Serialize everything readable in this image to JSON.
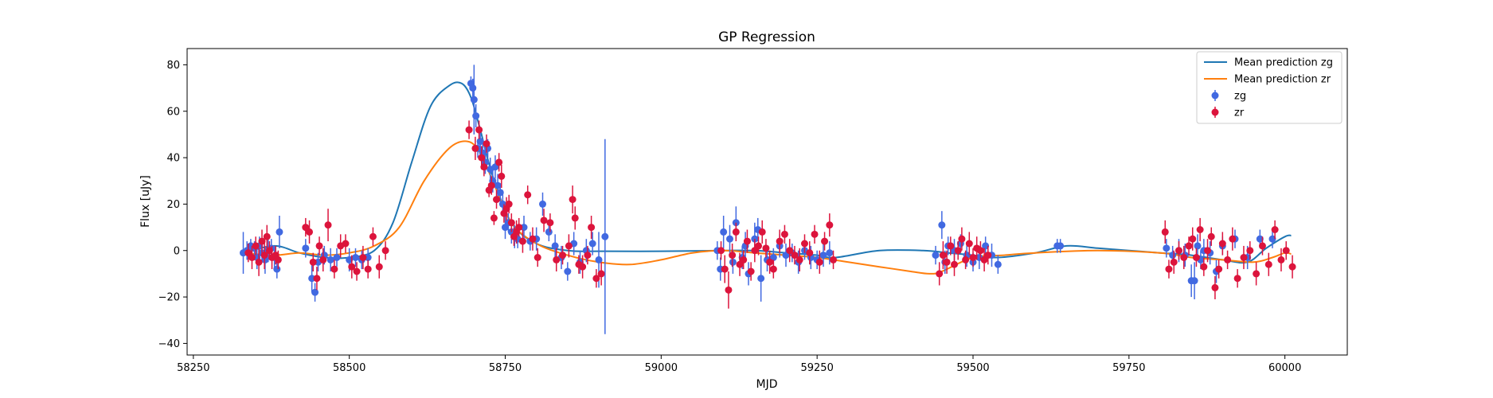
{
  "chart_data": {
    "type": "scatter",
    "title": "GP Regression",
    "xlabel": "MJD",
    "ylabel": "Flux [uJy]",
    "xlim": [
      58240,
      60100
    ],
    "ylim": [
      -45,
      87
    ],
    "xticks": [
      58250,
      58500,
      58750,
      59000,
      59250,
      59500,
      59750,
      60000
    ],
    "yticks": [
      -40,
      -20,
      0,
      20,
      40,
      60,
      80
    ],
    "grid": false,
    "legend_position": "top-right",
    "lines": [
      {
        "name": "Mean prediction zg",
        "color": "#1f77b4",
        "x": [
          58330,
          58380,
          58420,
          58460,
          58500,
          58540,
          58570,
          58600,
          58630,
          58660,
          58680,
          58695,
          58710,
          58730,
          58760,
          58800,
          58850,
          58900,
          59000,
          59100,
          59150,
          59200,
          59250,
          59280,
          59350,
          59420,
          59460,
          59500,
          59540,
          59600,
          59650,
          59700,
          59750,
          59800,
          59850,
          59900,
          59940,
          59970,
          60000,
          60010
        ],
        "y": [
          -1,
          2,
          -1,
          -3,
          -3,
          0,
          12,
          38,
          62,
          71,
          72,
          66,
          52,
          32,
          12,
          3,
          0,
          -0.3,
          -0.3,
          0,
          0,
          -1,
          -2,
          -3,
          0,
          0,
          -1,
          -2,
          -3,
          -1,
          2,
          1,
          0,
          -1,
          -2,
          -4,
          -5,
          1,
          6,
          6.5
        ]
      },
      {
        "name": "Mean prediction zr",
        "color": "#ff7f0e",
        "x": [
          58330,
          58380,
          58420,
          58460,
          58500,
          58540,
          58580,
          58620,
          58660,
          58690,
          58710,
          58730,
          58760,
          58800,
          58850,
          58900,
          58950,
          59000,
          59050,
          59100,
          59150,
          59200,
          59250,
          59300,
          59350,
          59400,
          59430,
          59450,
          59500,
          59550,
          59600,
          59700,
          59800,
          59850,
          59900,
          59950,
          59980,
          60000,
          60010
        ],
        "y": [
          -1,
          -2,
          -1,
          -2,
          -1,
          2,
          10,
          30,
          44,
          47,
          42,
          30,
          12,
          3,
          -2,
          -5,
          -6,
          -4,
          -1,
          0,
          -1,
          -2,
          -3,
          -5,
          -7,
          -9,
          -10,
          -9,
          -3,
          -2,
          -1,
          0,
          -1,
          -3,
          -4,
          -5,
          -3,
          -1,
          -1.5
        ]
      }
    ],
    "series": [
      {
        "name": "zg",
        "color": "#4169e1",
        "x": [
          58330,
          58336,
          58342,
          58348,
          58352,
          58356,
          58360,
          58365,
          58370,
          58375,
          58380,
          58384,
          58388,
          58430,
          58440,
          58445,
          58450,
          58460,
          58470,
          58480,
          58500,
          58510,
          58520,
          58530,
          58695,
          58698,
          58700,
          58703,
          58706,
          58710,
          58714,
          58718,
          58722,
          58726,
          58730,
          58734,
          58738,
          58742,
          58746,
          58750,
          58755,
          58760,
          58765,
          58770,
          58780,
          58790,
          58800,
          58810,
          58820,
          58830,
          58840,
          58850,
          58860,
          58870,
          58880,
          58890,
          58900,
          58910,
          59090,
          59095,
          59100,
          59110,
          59115,
          59120,
          59130,
          59135,
          59140,
          59150,
          59155,
          59160,
          59170,
          59180,
          59190,
          59200,
          59210,
          59220,
          59230,
          59240,
          59250,
          59260,
          59270,
          59440,
          59450,
          59455,
          59460,
          59470,
          59480,
          59490,
          59500,
          59510,
          59520,
          59530,
          59540,
          59635,
          59640,
          59810,
          59820,
          59830,
          59840,
          59850,
          59855,
          59860,
          59865,
          59870,
          59880,
          59890,
          59900,
          59920,
          59940,
          59960,
          59980
        ],
        "y": [
          -1,
          0,
          2,
          1,
          -3,
          2,
          -1,
          -4,
          0,
          1,
          -3,
          -8,
          8,
          1,
          -12,
          -18,
          -5,
          -2,
          -4,
          -3,
          -4,
          -3,
          -4,
          -3,
          72,
          70,
          65,
          58,
          44,
          47,
          42,
          38,
          44,
          35,
          30,
          36,
          28,
          25,
          20,
          10,
          12,
          8,
          6,
          5,
          10,
          4,
          5,
          20,
          8,
          2,
          -3,
          -9,
          3,
          -5,
          0,
          3,
          -4,
          6,
          0,
          -8,
          8,
          5,
          -5,
          12,
          -3,
          2,
          -10,
          5,
          9,
          -12,
          -4,
          -3,
          2,
          -2,
          -1,
          -5,
          0,
          -3,
          -4,
          -2,
          -1,
          -2,
          11,
          -5,
          2,
          0,
          3,
          -2,
          -5,
          -3,
          2,
          -2,
          -6,
          2,
          2,
          1,
          -2,
          0,
          -2,
          -13,
          -13,
          2,
          -4,
          0,
          -1,
          -9,
          2,
          5,
          -3,
          5,
          5
        ],
        "yerr": [
          9,
          4,
          3,
          3,
          5,
          4,
          4,
          6,
          5,
          4,
          5,
          4,
          7,
          4,
          6,
          4,
          4,
          4,
          5,
          4,
          5,
          4,
          4,
          4,
          3,
          4,
          15,
          5,
          4,
          5,
          4,
          5,
          4,
          5,
          5,
          5,
          5,
          4,
          5,
          5,
          4,
          5,
          5,
          4,
          5,
          4,
          5,
          5,
          4,
          5,
          5,
          4,
          5,
          5,
          5,
          5,
          12,
          42,
          4,
          5,
          7,
          6,
          5,
          7,
          5,
          6,
          5,
          7,
          5,
          10,
          5,
          4,
          5,
          5,
          4,
          5,
          4,
          5,
          4,
          5,
          5,
          4,
          6,
          5,
          4,
          5,
          4,
          5,
          4,
          5,
          4,
          5,
          4,
          3,
          3,
          4,
          4,
          5,
          5,
          7,
          8,
          5,
          4,
          5,
          5,
          5,
          4,
          4,
          5,
          4,
          4
        ]
      },
      {
        "name": "zr",
        "color": "#dc143c",
        "x": [
          58338,
          58344,
          58350,
          58355,
          58360,
          58364,
          58368,
          58372,
          58376,
          58382,
          58386,
          58430,
          58436,
          58442,
          58448,
          58452,
          58458,
          58466,
          58476,
          58486,
          58494,
          58504,
          58512,
          58522,
          58530,
          58538,
          58548,
          58558,
          58692,
          58702,
          58708,
          58712,
          58716,
          58720,
          58724,
          58728,
          58732,
          58736,
          58740,
          58744,
          58748,
          58752,
          58756,
          58760,
          58764,
          58768,
          58772,
          58778,
          58786,
          58794,
          58802,
          58812,
          58822,
          58832,
          58842,
          58852,
          58858,
          58862,
          58868,
          58874,
          58882,
          58888,
          58896,
          58904,
          59096,
          59102,
          59108,
          59114,
          59120,
          59126,
          59132,
          59138,
          59144,
          59150,
          59156,
          59162,
          59168,
          59174,
          59180,
          59190,
          59198,
          59206,
          59214,
          59222,
          59230,
          59238,
          59246,
          59254,
          59262,
          59270,
          59276,
          59446,
          59452,
          59458,
          59464,
          59470,
          59476,
          59482,
          59488,
          59494,
          59500,
          59506,
          59512,
          59518,
          59524,
          59808,
          59814,
          59822,
          59830,
          59838,
          59846,
          59852,
          59858,
          59864,
          59870,
          59876,
          59882,
          59888,
          59894,
          59900,
          59908,
          59916,
          59924,
          59934,
          59944,
          59954,
          59964,
          59974,
          59984,
          59994,
          60002,
          60012
        ],
        "y": [
          -1,
          -3,
          2,
          -5,
          4,
          -2,
          6,
          0,
          -3,
          -2,
          -4,
          10,
          8,
          -5,
          -12,
          2,
          -4,
          11,
          -8,
          2,
          3,
          -7,
          -9,
          -3,
          -8,
          6,
          -7,
          0,
          52,
          44,
          52,
          40,
          36,
          46,
          26,
          28,
          14,
          22,
          38,
          32,
          16,
          18,
          20,
          12,
          6,
          8,
          10,
          4,
          24,
          5,
          -3,
          13,
          12,
          -4,
          -2,
          2,
          22,
          14,
          -6,
          -7,
          -2,
          10,
          -12,
          -10,
          0,
          -8,
          -17,
          -2,
          8,
          -6,
          -4,
          4,
          -9,
          0,
          2,
          8,
          1,
          -5,
          -8,
          4,
          7,
          0,
          -2,
          -4,
          3,
          -1,
          7,
          -5,
          4,
          11,
          -4,
          -10,
          -2,
          -5,
          2,
          -6,
          0,
          5,
          -4,
          3,
          -3,
          1,
          0,
          -4,
          -2,
          8,
          -8,
          -5,
          0,
          -3,
          2,
          5,
          -3,
          9,
          -7,
          0,
          6,
          -16,
          -8,
          3,
          -4,
          5,
          -12,
          -3,
          0,
          -10,
          2,
          -6,
          9,
          -4,
          0,
          -7
        ],
        "yerr": [
          4,
          5,
          4,
          6,
          5,
          6,
          5,
          4,
          5,
          4,
          4,
          4,
          5,
          4,
          5,
          4,
          5,
          7,
          4,
          5,
          4,
          5,
          4,
          5,
          4,
          4,
          5,
          4,
          4,
          5,
          4,
          5,
          4,
          4,
          3,
          4,
          3,
          4,
          4,
          5,
          4,
          5,
          4,
          4,
          4,
          5,
          4,
          5,
          4,
          5,
          4,
          5,
          4,
          5,
          4,
          5,
          6,
          5,
          4,
          5,
          4,
          5,
          4,
          5,
          4,
          6,
          8,
          5,
          4,
          5,
          4,
          5,
          4,
          5,
          4,
          5,
          4,
          5,
          4,
          5,
          4,
          5,
          4,
          5,
          4,
          5,
          4,
          5,
          4,
          5,
          4,
          5,
          6,
          5,
          4,
          5,
          4,
          5,
          4,
          5,
          4,
          5,
          4,
          5,
          4,
          5,
          4,
          5,
          4,
          5,
          4,
          5,
          4,
          5,
          4,
          5,
          4,
          5,
          4,
          5,
          4,
          5,
          4,
          5,
          4,
          5,
          4,
          5,
          4,
          5,
          4,
          5
        ]
      }
    ]
  }
}
